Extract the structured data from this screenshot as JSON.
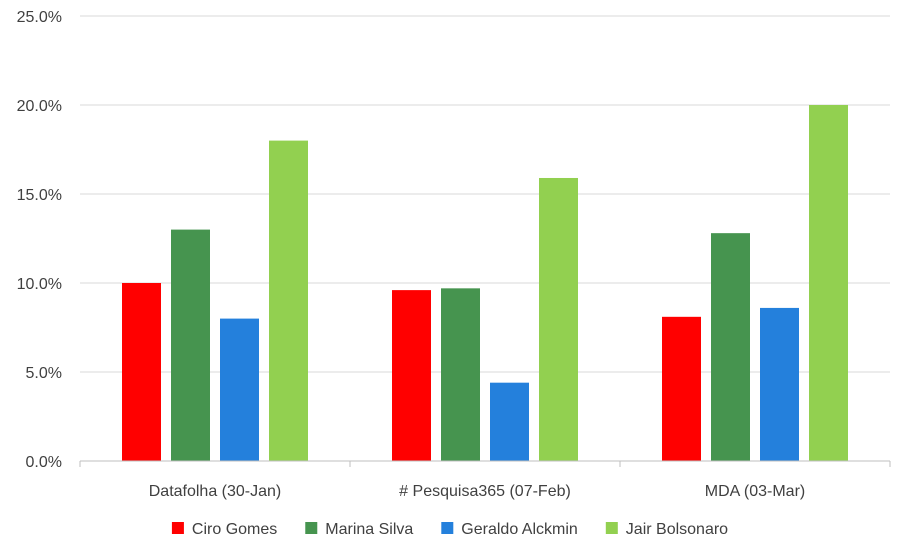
{
  "chart_data": {
    "type": "bar",
    "title": "",
    "xlabel": "",
    "ylabel": "",
    "categories": [
      "Datafolha (30-Jan)",
      "# Pesquisa365 (07-Feb)",
      "MDA (03-Mar)"
    ],
    "series": [
      {
        "name": "Ciro Gomes",
        "color": "#ff0000",
        "values": [
          10.0,
          9.6,
          8.1
        ]
      },
      {
        "name": "Marina Silva",
        "color": "#46944f",
        "values": [
          13.0,
          9.7,
          12.8
        ]
      },
      {
        "name": "Geraldo Alckmin",
        "color": "#2480dc",
        "values": [
          8.0,
          4.4,
          8.6
        ]
      },
      {
        "name": "Jair Bolsonaro",
        "color": "#92d050",
        "values": [
          18.0,
          15.9,
          20.0
        ]
      }
    ],
    "ylim": [
      0,
      25
    ],
    "yticks": [
      0,
      5,
      10,
      15,
      20,
      25
    ],
    "ytick_labels": [
      "0.0%",
      "5.0%",
      "10.0%",
      "15.0%",
      "20.0%",
      "25.0%"
    ],
    "grid": true,
    "legend_position": "bottom"
  }
}
